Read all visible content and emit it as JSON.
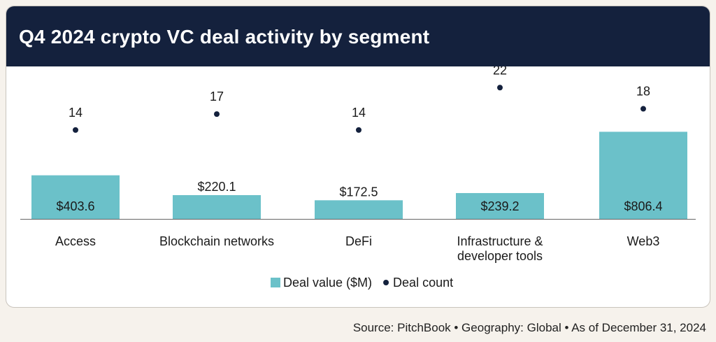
{
  "header": {
    "title": "Q4 2024 crypto VC deal activity by segment"
  },
  "colors": {
    "header_bg": "#14213d",
    "bar": "#6bc1c9",
    "dot": "#14213d",
    "page_bg": "#f6f2ec"
  },
  "chart_data": {
    "type": "bar",
    "title": "Q4 2024 crypto VC deal activity by segment",
    "categories": [
      [
        "Access"
      ],
      [
        "Blockchain networks"
      ],
      [
        "DeFi"
      ],
      [
        "Infrastructure &",
        "developer tools"
      ],
      [
        "Web3"
      ]
    ],
    "series": [
      {
        "name": "Deal value ($M)",
        "type": "bar",
        "values": [
          403.6,
          220.1,
          172.5,
          239.2,
          806.4
        ],
        "labels": [
          "$403.6",
          "$220.1",
          "$172.5",
          "$239.2",
          "$806.4"
        ]
      },
      {
        "name": "Deal count",
        "type": "scatter",
        "values": [
          14,
          17,
          14,
          22,
          18
        ]
      }
    ],
    "legend": {
      "position": "bottom",
      "items": [
        "Deal value ($M)",
        "Deal count"
      ]
    }
  },
  "footer": {
    "source": "Source: PitchBook  •  Geography: Global  •  As of December 31, 2024"
  }
}
